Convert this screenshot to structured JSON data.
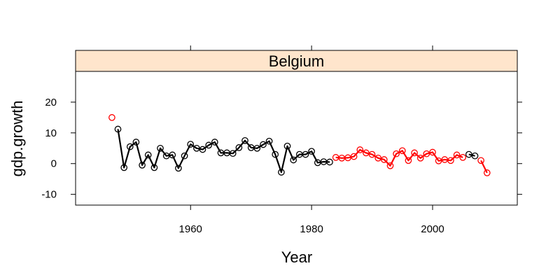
{
  "chart_data": {
    "type": "line",
    "panel_title": "Belgium",
    "xlabel": "Year",
    "ylabel": "gdp.growth",
    "xlim": [
      1941,
      2014
    ],
    "ylim": [
      -13.5,
      30
    ],
    "x_ticks": [
      1960,
      1980,
      2000
    ],
    "x_tick_labels": [
      "1960",
      "1980",
      "2000"
    ],
    "y_ticks": [
      -10,
      0,
      10,
      20
    ],
    "y_tick_labels": [
      "-10",
      "0",
      "10",
      "20"
    ],
    "grid": false,
    "legend": "none",
    "colors": {
      "black": "#000000",
      "red": "#ff0000",
      "strip": "#ffe5cc"
    },
    "series": [
      {
        "color": "black",
        "segments": [
          [
            [
              1948,
              11.2
            ],
            [
              1949,
              -1.3
            ],
            [
              1950,
              5.5
            ],
            [
              1951,
              7.0
            ],
            [
              1952,
              -0.5
            ],
            [
              1953,
              2.8
            ],
            [
              1954,
              -1.3
            ],
            [
              1955,
              5.0
            ],
            [
              1956,
              2.5
            ],
            [
              1957,
              2.8
            ],
            [
              1958,
              -1.5
            ],
            [
              1959,
              2.5
            ],
            [
              1960,
              6.3
            ],
            [
              1961,
              5.0
            ],
            [
              1962,
              4.6
            ],
            [
              1963,
              6.0
            ],
            [
              1964,
              7.0
            ],
            [
              1965,
              3.5
            ],
            [
              1966,
              3.5
            ],
            [
              1967,
              3.3
            ],
            [
              1968,
              5.2
            ],
            [
              1969,
              7.5
            ],
            [
              1970,
              5.2
            ],
            [
              1971,
              5.0
            ],
            [
              1972,
              6.2
            ],
            [
              1973,
              7.3
            ],
            [
              1974,
              3.0
            ],
            [
              1975,
              -2.8
            ],
            [
              1976,
              5.7
            ],
            [
              1977,
              1.2
            ],
            [
              1978,
              3.0
            ],
            [
              1979,
              3.0
            ],
            [
              1980,
              4.0
            ],
            [
              1981,
              0.3
            ],
            [
              1982,
              0.6
            ],
            [
              1983,
              0.5
            ]
          ],
          [
            [
              2006,
              3.0
            ],
            [
              2007,
              2.5
            ]
          ]
        ]
      },
      {
        "color": "red",
        "segments": [
          [
            [
              1947,
              15.0
            ]
          ],
          [
            [
              1984,
              2.0
            ],
            [
              1985,
              1.8
            ],
            [
              1986,
              1.9
            ],
            [
              1987,
              2.3
            ],
            [
              1988,
              4.5
            ],
            [
              1989,
              3.5
            ],
            [
              1990,
              3.0
            ],
            [
              1991,
              1.8
            ],
            [
              1992,
              1.3
            ],
            [
              1993,
              -0.7
            ],
            [
              1994,
              3.2
            ],
            [
              1995,
              4.2
            ],
            [
              1996,
              1.0
            ],
            [
              1997,
              3.5
            ],
            [
              1998,
              1.8
            ],
            [
              1999,
              3.2
            ],
            [
              2000,
              3.7
            ],
            [
              2001,
              0.9
            ],
            [
              2002,
              1.3
            ],
            [
              2003,
              1.0
            ],
            [
              2004,
              2.8
            ],
            [
              2005,
              2.0
            ]
          ],
          [
            [
              2008,
              1.0
            ],
            [
              2009,
              -3.0
            ]
          ]
        ]
      }
    ]
  }
}
